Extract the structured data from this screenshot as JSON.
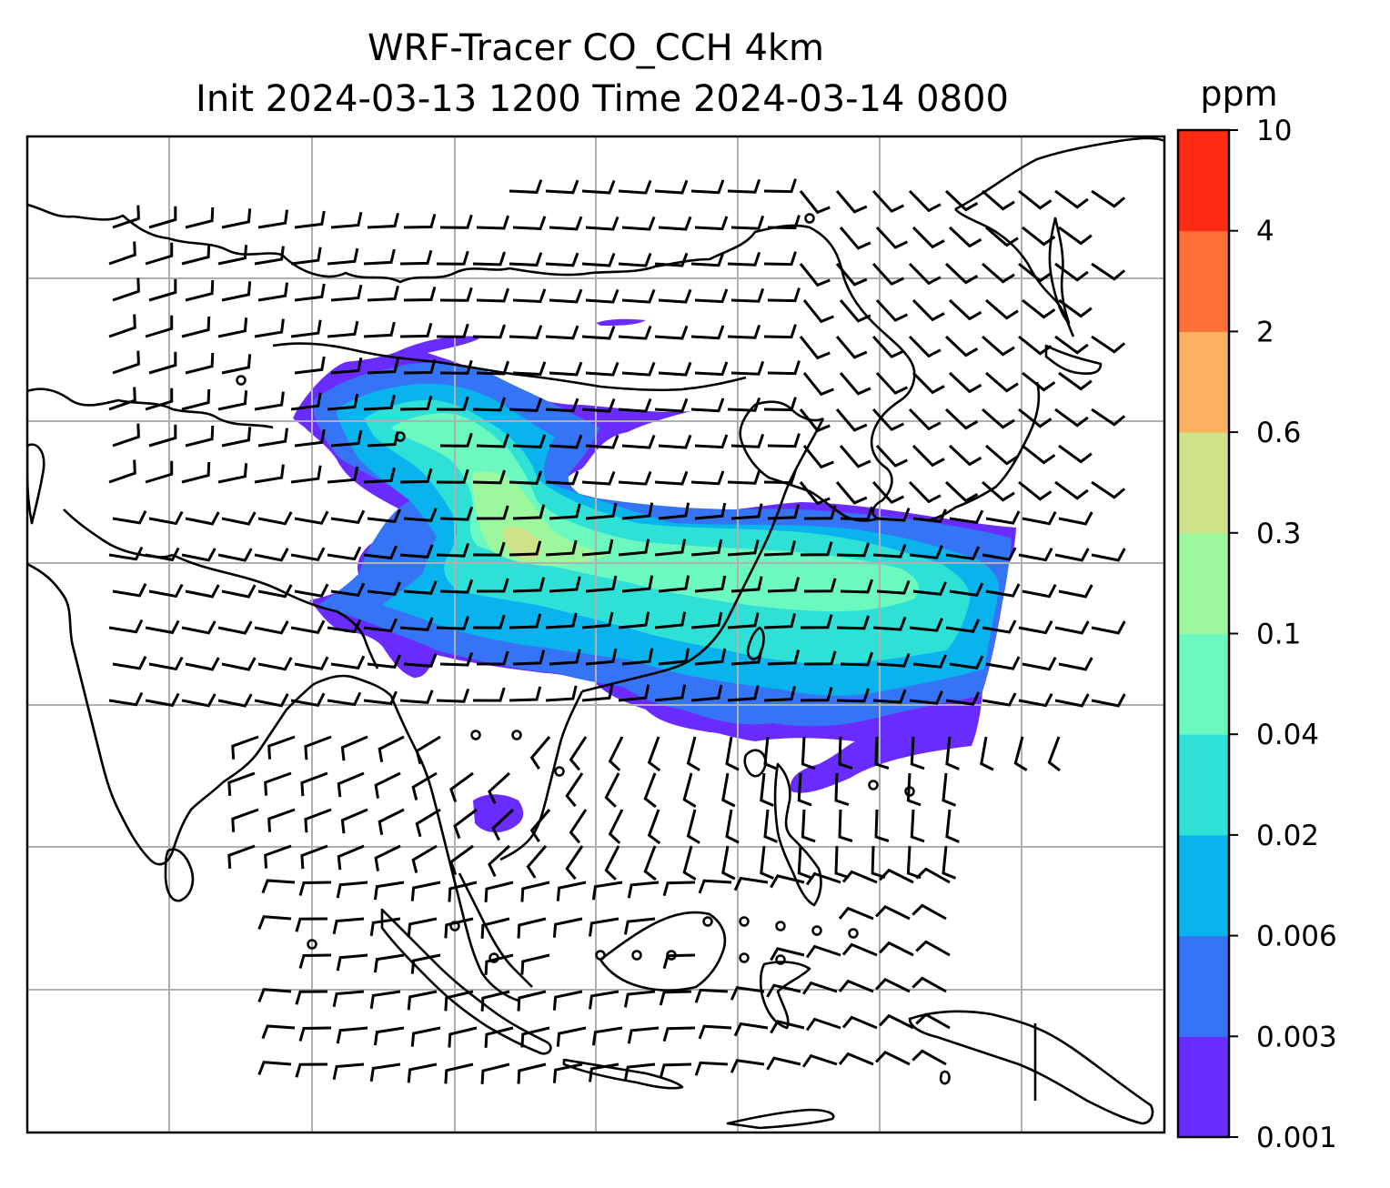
{
  "figure": {
    "title_line1": "WRF-Tracer CO_CCH 4km",
    "title_line2": "Init 2024-03-13 1200 Time 2024-03-14 0800"
  },
  "colorbar": {
    "unit": "ppm",
    "levels": [
      "0.001",
      "0.003",
      "0.006",
      "0.02",
      "0.04",
      "0.1",
      "0.3",
      "0.6",
      "2",
      "4",
      "10"
    ],
    "colors": [
      "#6a2bff",
      "#3575f5",
      "#08b3ee",
      "#2ee0d6",
      "#6cf9c0",
      "#9df79c",
      "#cfe28a",
      "#fcb061",
      "#ff7039",
      "#ff2b14"
    ]
  },
  "map": {
    "plume_colors": {
      "lowest": "#6a2bff",
      "low": "#3575f5",
      "mid": "#08b3ee",
      "midhigh": "#2ee0d6",
      "high": "#6cf9c0",
      "core": "#9df79c",
      "peak": "#cfe28a"
    },
    "grid_color": "#b0b0b0",
    "coast_color": "#000000"
  }
}
